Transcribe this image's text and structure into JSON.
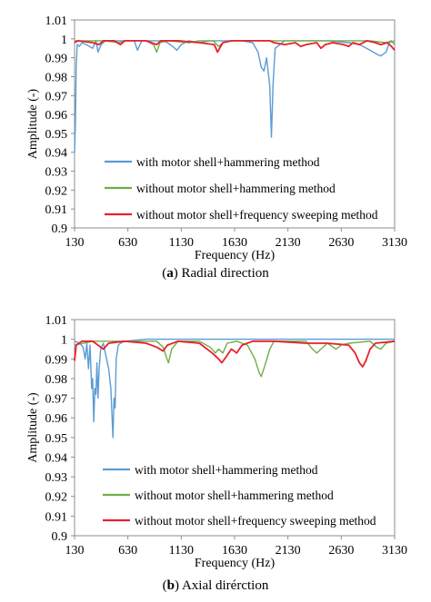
{
  "chart_data": [
    {
      "type": "line",
      "caption_letter": "a",
      "caption_text": "Radial direction",
      "xlabel": "Frequency (Hz)",
      "ylabel": "Amplitude (-)",
      "xlim": [
        130,
        3130
      ],
      "ylim": [
        0.9,
        1.01
      ],
      "xticks": [
        130,
        630,
        1130,
        1630,
        2130,
        2630,
        3130
      ],
      "yticks": [
        "0.9",
        "0.91",
        "0.92",
        "0.93",
        "0.94",
        "0.95",
        "0.96",
        "0.97",
        "0.98",
        "0.99",
        "1",
        "1.01"
      ],
      "grid": false,
      "legend_position": "bottom-right",
      "series": [
        {
          "name": "with motor shell+hammering method",
          "color": "#5b9bd5",
          "points": [
            [
              130,
              0.94
            ],
            [
              138,
              0.955
            ],
            [
              145,
              0.985
            ],
            [
              155,
              0.997
            ],
            [
              175,
              0.996
            ],
            [
              200,
              0.998
            ],
            [
              240,
              0.997
            ],
            [
              300,
              0.995
            ],
            [
              330,
              0.999
            ],
            [
              350,
              0.993
            ],
            [
              380,
              0.997
            ],
            [
              420,
              0.999
            ],
            [
              500,
              0.999
            ],
            [
              600,
              0.999
            ],
            [
              690,
              0.999
            ],
            [
              720,
              0.994
            ],
            [
              760,
              0.999
            ],
            [
              850,
              0.999
            ],
            [
              950,
              0.999
            ],
            [
              1000,
              0.998
            ],
            [
              1050,
              0.996
            ],
            [
              1090,
              0.994
            ],
            [
              1130,
              0.997
            ],
            [
              1200,
              0.999
            ],
            [
              1300,
              0.998
            ],
            [
              1400,
              0.999
            ],
            [
              1600,
              0.999
            ],
            [
              1700,
              0.999
            ],
            [
              1800,
              0.998
            ],
            [
              1850,
              0.993
            ],
            [
              1880,
              0.985
            ],
            [
              1905,
              0.983
            ],
            [
              1930,
              0.99
            ],
            [
              1960,
              0.975
            ],
            [
              1975,
              0.948
            ],
            [
              1990,
              0.975
            ],
            [
              2010,
              0.995
            ],
            [
              2100,
              0.999
            ],
            [
              2300,
              0.999
            ],
            [
              2500,
              0.999
            ],
            [
              2700,
              0.998
            ],
            [
              2800,
              0.997
            ],
            [
              2900,
              0.994
            ],
            [
              2960,
              0.992
            ],
            [
              3000,
              0.991
            ],
            [
              3050,
              0.993
            ],
            [
              3080,
              0.998
            ],
            [
              3130,
              0.999
            ]
          ]
        },
        {
          "name": "without motor shell+hammering method",
          "color": "#70ad47",
          "points": [
            [
              130,
              0.999
            ],
            [
              200,
              0.999
            ],
            [
              400,
              0.999
            ],
            [
              550,
              0.998
            ],
            [
              600,
              0.999
            ],
            [
              800,
              0.999
            ],
            [
              870,
              0.997
            ],
            [
              900,
              0.993
            ],
            [
              930,
              0.998
            ],
            [
              1000,
              0.999
            ],
            [
              1200,
              0.998
            ],
            [
              1300,
              0.999
            ],
            [
              1430,
              0.999
            ],
            [
              1480,
              0.996
            ],
            [
              1520,
              0.998
            ],
            [
              1600,
              0.999
            ],
            [
              2200,
              0.999
            ],
            [
              2600,
              0.999
            ],
            [
              2900,
              0.999
            ],
            [
              3050,
              0.998
            ],
            [
              3100,
              0.999
            ],
            [
              3130,
              0.997
            ]
          ]
        },
        {
          "name": "without motor shell+frequency sweeping method",
          "color": "#e8202a",
          "points": [
            [
              130,
              0.998
            ],
            [
              160,
              0.999
            ],
            [
              300,
              0.998
            ],
            [
              360,
              0.997
            ],
            [
              400,
              0.999
            ],
            [
              500,
              0.999
            ],
            [
              560,
              0.997
            ],
            [
              600,
              0.999
            ],
            [
              800,
              0.999
            ],
            [
              900,
              0.997
            ],
            [
              940,
              0.999
            ],
            [
              1100,
              0.999
            ],
            [
              1300,
              0.998
            ],
            [
              1440,
              0.997
            ],
            [
              1470,
              0.993
            ],
            [
              1500,
              0.996
            ],
            [
              1520,
              0.998
            ],
            [
              1600,
              0.999
            ],
            [
              1800,
              0.999
            ],
            [
              1960,
              0.999
            ],
            [
              2000,
              0.998
            ],
            [
              2100,
              0.997
            ],
            [
              2200,
              0.998
            ],
            [
              2250,
              0.996
            ],
            [
              2300,
              0.997
            ],
            [
              2400,
              0.998
            ],
            [
              2440,
              0.995
            ],
            [
              2480,
              0.997
            ],
            [
              2550,
              0.998
            ],
            [
              2650,
              0.997
            ],
            [
              2700,
              0.996
            ],
            [
              2740,
              0.998
            ],
            [
              2800,
              0.997
            ],
            [
              2870,
              0.999
            ],
            [
              2950,
              0.998
            ],
            [
              3000,
              0.997
            ],
            [
              3060,
              0.998
            ],
            [
              3100,
              0.996
            ],
            [
              3130,
              0.994
            ]
          ]
        }
      ]
    },
    {
      "type": "line",
      "caption_letter": "b",
      "caption_text": "Axial dirérction",
      "xlabel": "Frequency (Hz)",
      "ylabel": "Amplitude (-)",
      "xlim": [
        130,
        3130
      ],
      "ylim": [
        0.9,
        1.01
      ],
      "xticks": [
        130,
        630,
        1130,
        1630,
        2130,
        2630,
        3130
      ],
      "yticks": [
        "0.9",
        "0.91",
        "0.92",
        "0.93",
        "0.94",
        "0.95",
        "0.96",
        "0.97",
        "0.98",
        "0.99",
        "1",
        "1.01"
      ],
      "grid": false,
      "legend_position": "bottom-right",
      "series": [
        {
          "name": "with motor shell+hammering method",
          "color": "#5b9bd5",
          "points": [
            [
              130,
              0.999
            ],
            [
              180,
              0.998
            ],
            [
              210,
              0.996
            ],
            [
              230,
              0.99
            ],
            [
              245,
              0.998
            ],
            [
              260,
              0.985
            ],
            [
              275,
              0.997
            ],
            [
              290,
              0.975
            ],
            [
              300,
              0.98
            ],
            [
              310,
              0.958
            ],
            [
              320,
              0.975
            ],
            [
              330,
              0.972
            ],
            [
              340,
              0.988
            ],
            [
              350,
              0.97
            ],
            [
              360,
              0.985
            ],
            [
              375,
              0.995
            ],
            [
              400,
              0.998
            ],
            [
              430,
              0.99
            ],
            [
              450,
              0.985
            ],
            [
              470,
              0.975
            ],
            [
              480,
              0.962
            ],
            [
              490,
              0.95
            ],
            [
              500,
              0.97
            ],
            [
              510,
              0.965
            ],
            [
              520,
              0.99
            ],
            [
              540,
              0.997
            ],
            [
              560,
              0.998
            ],
            [
              600,
              0.999
            ],
            [
              800,
              1.0
            ],
            [
              1500,
              1.0
            ],
            [
              2100,
              1.0
            ],
            [
              2600,
              1.0
            ],
            [
              2900,
              1.0
            ],
            [
              3130,
              1.0
            ]
          ]
        },
        {
          "name": "without motor shell+hammering method",
          "color": "#70ad47",
          "points": [
            [
              130,
              0.997
            ],
            [
              300,
              0.999
            ],
            [
              600,
              0.999
            ],
            [
              900,
              0.999
            ],
            [
              960,
              0.996
            ],
            [
              990,
              0.991
            ],
            [
              1010,
              0.988
            ],
            [
              1040,
              0.995
            ],
            [
              1100,
              0.999
            ],
            [
              1300,
              0.999
            ],
            [
              1400,
              0.996
            ],
            [
              1450,
              0.993
            ],
            [
              1480,
              0.995
            ],
            [
              1520,
              0.993
            ],
            [
              1560,
              0.998
            ],
            [
              1650,
              0.999
            ],
            [
              1750,
              0.997
            ],
            [
              1820,
              0.99
            ],
            [
              1860,
              0.983
            ],
            [
              1880,
              0.981
            ],
            [
              1910,
              0.986
            ],
            [
              1960,
              0.995
            ],
            [
              2000,
              0.999
            ],
            [
              2300,
              0.999
            ],
            [
              2360,
              0.995
            ],
            [
              2400,
              0.993
            ],
            [
              2440,
              0.995
            ],
            [
              2500,
              0.998
            ],
            [
              2580,
              0.995
            ],
            [
              2630,
              0.997
            ],
            [
              2700,
              0.998
            ],
            [
              2900,
              0.999
            ],
            [
              2960,
              0.996
            ],
            [
              3000,
              0.995
            ],
            [
              3050,
              0.998
            ],
            [
              3130,
              0.999
            ]
          ]
        },
        {
          "name": "without motor shell+frequency sweeping method",
          "color": "#e8202a",
          "points": [
            [
              130,
              0.989
            ],
            [
              145,
              0.997
            ],
            [
              200,
              0.999
            ],
            [
              300,
              0.999
            ],
            [
              350,
              0.997
            ],
            [
              400,
              0.995
            ],
            [
              450,
              0.998
            ],
            [
              600,
              0.999
            ],
            [
              800,
              0.998
            ],
            [
              900,
              0.996
            ],
            [
              960,
              0.994
            ],
            [
              1000,
              0.997
            ],
            [
              1100,
              0.999
            ],
            [
              1300,
              0.998
            ],
            [
              1420,
              0.993
            ],
            [
              1480,
              0.99
            ],
            [
              1510,
              0.988
            ],
            [
              1550,
              0.991
            ],
            [
              1600,
              0.995
            ],
            [
              1650,
              0.993
            ],
            [
              1700,
              0.997
            ],
            [
              1800,
              0.999
            ],
            [
              2000,
              0.999
            ],
            [
              2300,
              0.998
            ],
            [
              2500,
              0.998
            ],
            [
              2700,
              0.997
            ],
            [
              2760,
              0.993
            ],
            [
              2800,
              0.988
            ],
            [
              2830,
              0.986
            ],
            [
              2860,
              0.989
            ],
            [
              2900,
              0.995
            ],
            [
              2950,
              0.998
            ],
            [
              3130,
              0.999
            ]
          ]
        }
      ]
    }
  ]
}
